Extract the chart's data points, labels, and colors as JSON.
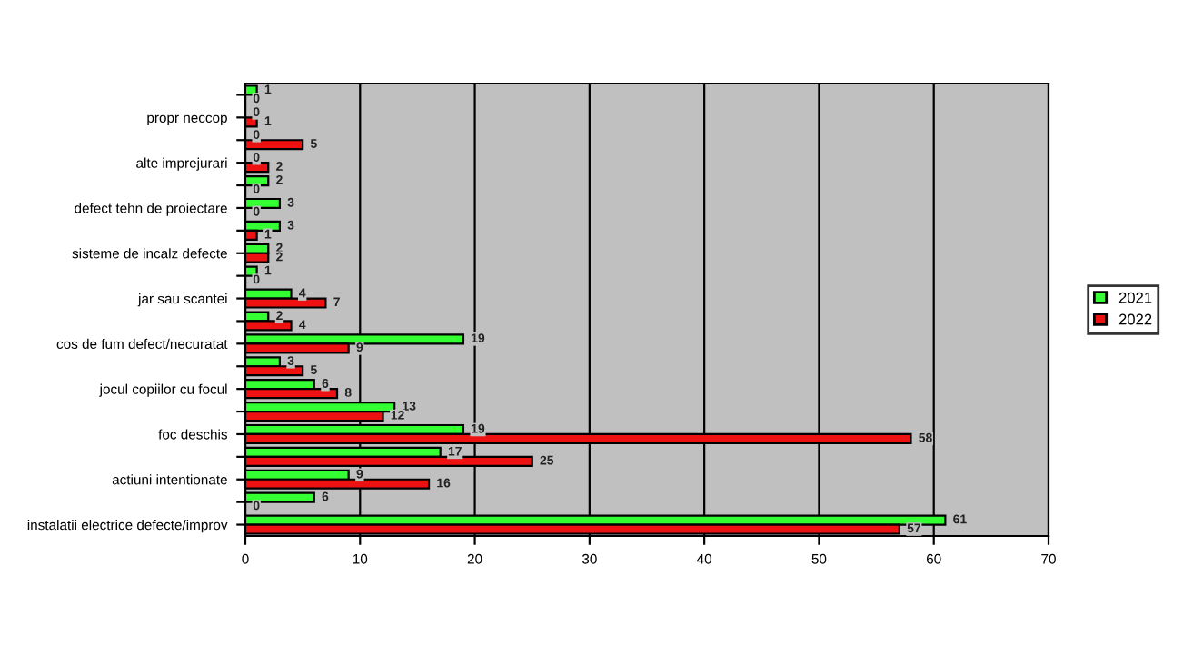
{
  "chart_data": {
    "type": "bar",
    "orientation": "horizontal",
    "categories": [
      null,
      "propr neccop",
      null,
      "alte imprejurari",
      null,
      "defect tehn de proiectare",
      null,
      "sisteme de incalz defecte",
      null,
      "jar sau scantei",
      null,
      "cos de fum defect/necuratat",
      null,
      "jocul copiilor cu focul",
      null,
      "foc deschis",
      null,
      "actiuni intentionate",
      null,
      "instalatii electrice defecte/improv"
    ],
    "series": [
      {
        "name": "2021",
        "color": "#33ff33",
        "values": [
          1,
          0,
          0,
          0,
          2,
          3,
          3,
          2,
          1,
          4,
          2,
          19,
          3,
          6,
          13,
          19,
          17,
          9,
          6,
          61
        ]
      },
      {
        "name": "2022",
        "color": "#ee1111",
        "values": [
          0,
          1,
          5,
          2,
          0,
          0,
          1,
          2,
          0,
          7,
          4,
          9,
          5,
          8,
          12,
          58,
          25,
          16,
          0,
          57
        ]
      }
    ],
    "xlim": [
      0,
      70
    ],
    "xticks": [
      0,
      10,
      20,
      30,
      40,
      50,
      60,
      70
    ],
    "grid": "x",
    "legend": "right",
    "data_labels": true
  }
}
